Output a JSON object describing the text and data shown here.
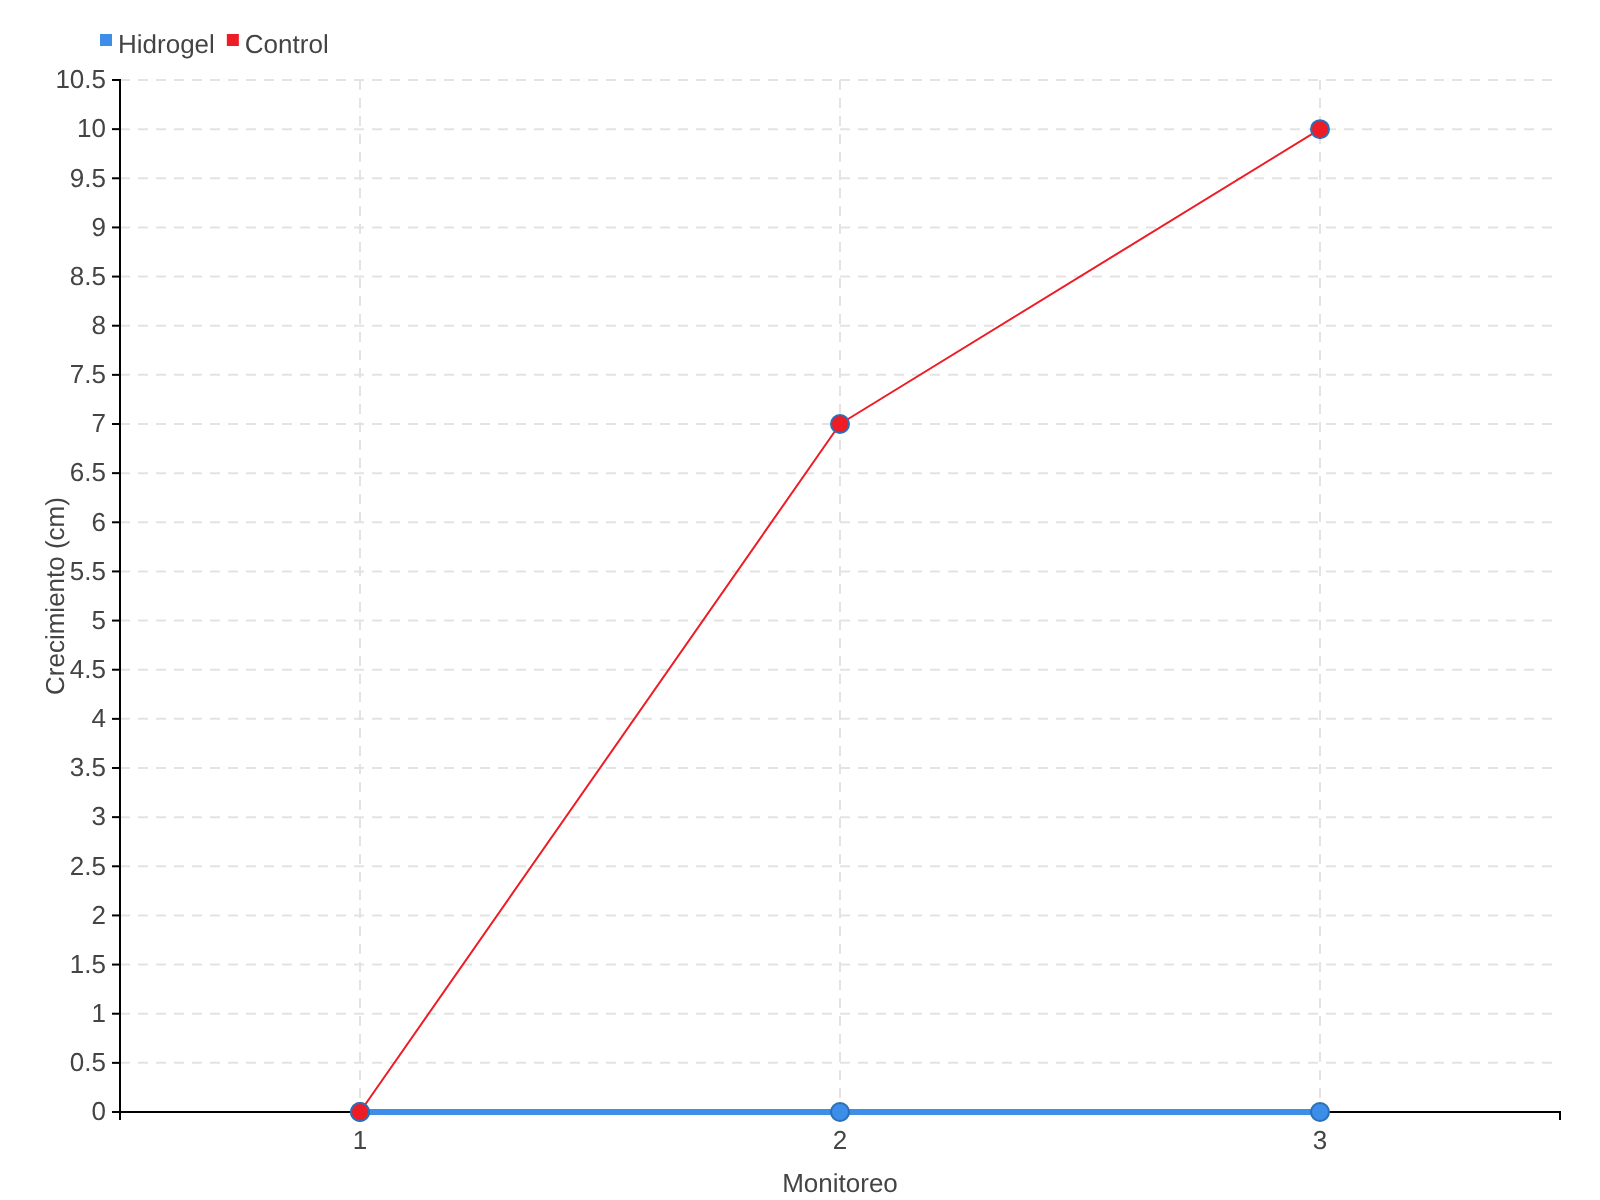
{
  "chart_data": {
    "type": "line",
    "xlabel": "Monitoreo",
    "ylabel": "Crecimiento (cm)",
    "categories": [
      "1",
      "2",
      "3"
    ],
    "series": [
      {
        "name": "Hidrogel",
        "color": "#3d8ee8",
        "values": [
          0,
          0,
          0
        ]
      },
      {
        "name": "Control",
        "color": "#ee1c25",
        "values": [
          0,
          7,
          10
        ]
      }
    ],
    "ylim": [
      0,
      10.5
    ],
    "yticks": [
      0,
      0.5,
      1,
      1.5,
      2,
      2.5,
      3,
      3.5,
      4,
      4.5,
      5,
      5.5,
      6,
      6.5,
      7,
      7.5,
      8,
      8.5,
      9,
      9.5,
      10,
      10.5
    ],
    "grid": true,
    "legend": "top left",
    "marker": "circle"
  }
}
